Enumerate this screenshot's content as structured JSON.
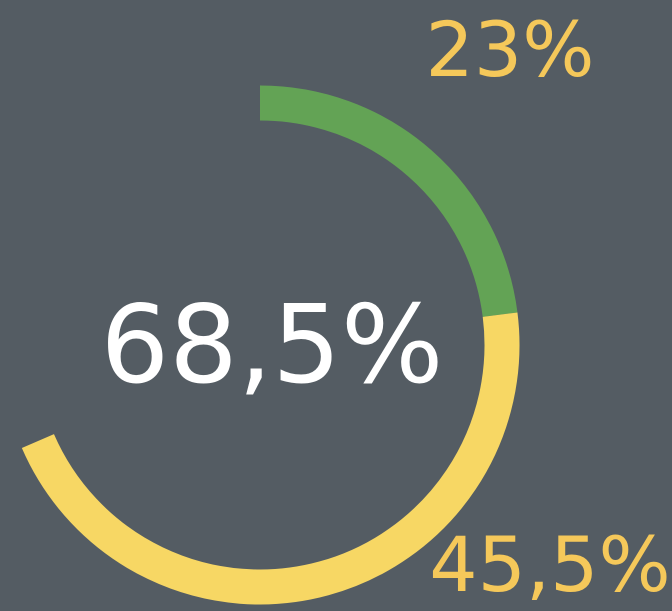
{
  "chart_data": {
    "type": "donut",
    "center_label": "68,5%",
    "categories": [
      null,
      null
    ],
    "values": [
      23,
      45.5
    ],
    "value_labels": [
      "23%",
      "45,5%"
    ],
    "colors": [
      "#63a355",
      "#f7d764"
    ],
    "label_color": "#f5c85a"
  }
}
